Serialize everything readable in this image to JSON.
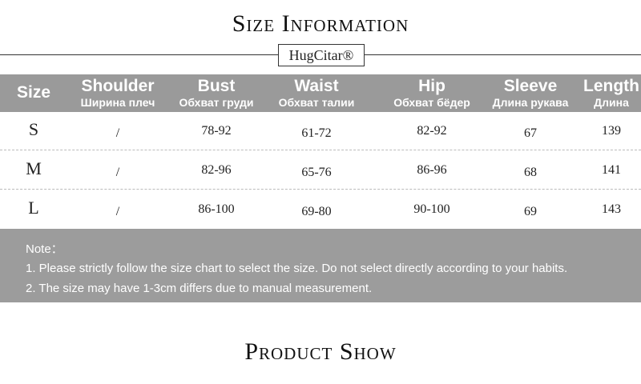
{
  "header": {
    "title": "Size Information",
    "brand": "HugCitar®"
  },
  "table": {
    "columns": [
      {
        "en": "Size"
      },
      {
        "en": "Shoulder",
        "ru": "Ширина плеч"
      },
      {
        "en": "Bust",
        "ru": "Обхват груди"
      },
      {
        "en": "Waist",
        "ru": "Обхват талии"
      },
      {
        "en": "Hip",
        "ru": "Обхват бёдер"
      },
      {
        "en": "Sleeve",
        "ru": "Длина рукава"
      },
      {
        "en": "Length",
        "ru": "Длина"
      }
    ],
    "rows": [
      [
        "S",
        "/",
        "78-92",
        "61-72",
        "82-92",
        67,
        139
      ],
      [
        "M",
        "/",
        "82-96",
        "65-76",
        "86-96",
        68,
        141
      ],
      [
        "L",
        "/",
        "86-100",
        "69-80",
        "90-100",
        69,
        143
      ]
    ]
  },
  "notes": {
    "heading": "Note：",
    "items": [
      "1. Please strictly follow the size chart to select the size. Do not select directly according to your habits.",
      "2. The size may have 1-3cm differs due to manual measurement."
    ]
  },
  "footer": {
    "title": "Product Show"
  }
}
